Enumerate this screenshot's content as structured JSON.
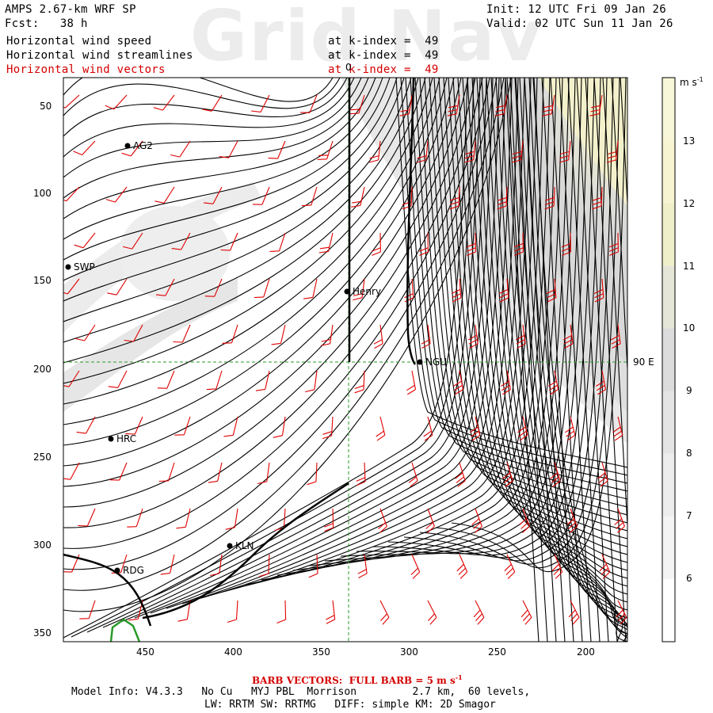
{
  "header": {
    "model_title": "AMPS 2.67-km WRF SP",
    "fcst": "Fcst:   38 h",
    "init": "Init: 12 UTC Fri 09 Jan 26",
    "valid": "Valid: 02 UTC Sun 11 Jan 26",
    "watermark": "Grid Nav"
  },
  "fields": [
    {
      "name": "Horizontal wind speed",
      "level": "at k-index =  49",
      "color": "#000000"
    },
    {
      "name": "Horizontal wind streamlines",
      "level": "at k-index =  49",
      "color": "#000000"
    },
    {
      "name": "Horizontal wind vectors",
      "level": "at k-index =  49",
      "color": "#d40000"
    }
  ],
  "axes": {
    "y_ticks": [
      "50",
      "100",
      "150",
      "200",
      "250",
      "300",
      "350"
    ],
    "x_ticks": [
      "450",
      "400",
      "350",
      "300",
      "250",
      "200"
    ],
    "meridian_label": "0",
    "parallel_label": "90 E"
  },
  "stations": [
    {
      "id": "AG2"
    },
    {
      "id": "SWP"
    },
    {
      "id": "Henry"
    },
    {
      "id": "NGU"
    },
    {
      "id": "HRC"
    },
    {
      "id": "KLN"
    },
    {
      "id": "RDG"
    }
  ],
  "colorbar": {
    "unit": "m s",
    "unit_exp": "-1",
    "levels": [
      "13",
      "12",
      "11",
      "10",
      "9",
      "8",
      "7",
      "6"
    ],
    "colors": [
      "#f7f4d2",
      "#efefc9",
      "#e6e6d8",
      "#dcdcdc",
      "#e4e4e4",
      "#ececec",
      "#f4f4f4",
      "#ffffff"
    ]
  },
  "footer": {
    "barb_prefix": "BARB VECTORS:",
    "barb_rest": "FULL BARB = 5 m s",
    "barb_exp": "-1",
    "model_info": "Model Info: V4.3.3   No Cu   MYJ PBL  Morrison         2.7 km,  60 levels,",
    "physics": "LW: RRTM SW: RRTMG   DIFF: simple KM: 2D Smagor"
  }
}
